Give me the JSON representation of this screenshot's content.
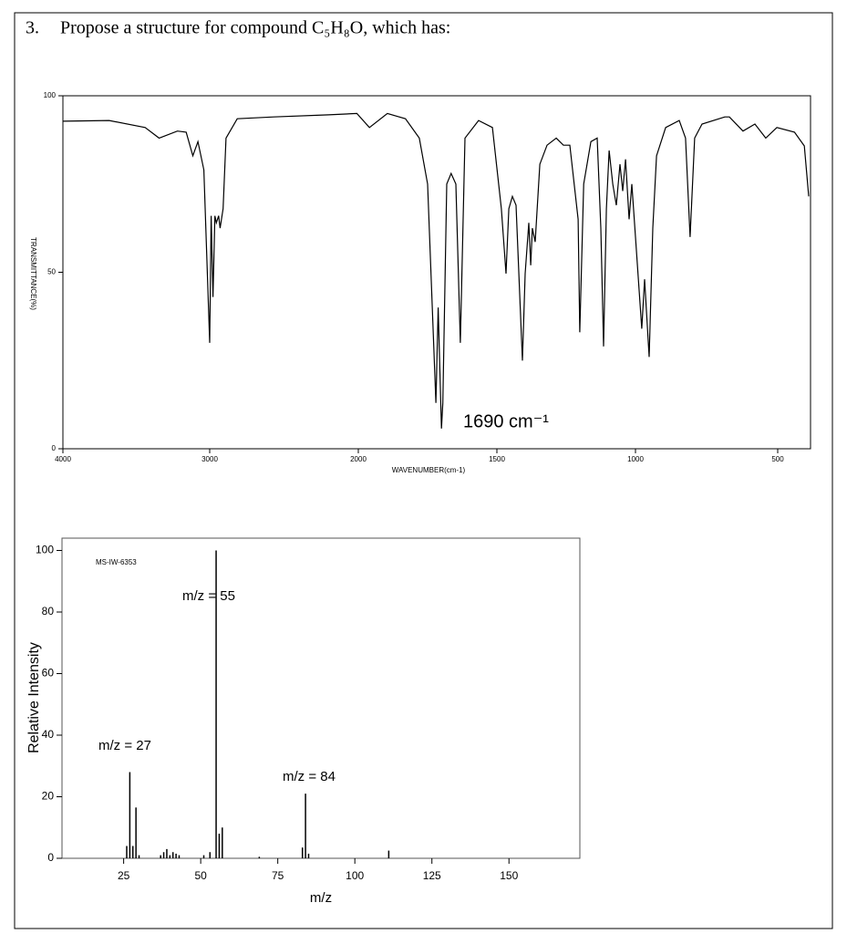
{
  "question": {
    "number": "3.",
    "text": "Propose a structure for compound C₅H₈O, which has:"
  },
  "chart_data": [
    {
      "type": "line",
      "x_label": "WAVENUMBER(cm-1)",
      "y_label": "TRANSMITTANCE(%)",
      "annotation": "1690 cm⁻¹",
      "x": [
        4000,
        3685,
        3440,
        3345,
        3220,
        3160,
        3115,
        3080,
        3040,
        3000,
        2990,
        2978,
        2965,
        2955,
        2940,
        2930,
        2910,
        2890,
        2815,
        2570,
        2200,
        2010,
        1960,
        1895,
        1830,
        1780,
        1750,
        1720,
        1712,
        1700,
        1695,
        1681,
        1665,
        1648,
        1632,
        1615,
        1566,
        1516,
        1484,
        1467,
        1457,
        1444,
        1431,
        1408,
        1398,
        1385,
        1378,
        1372,
        1362,
        1345,
        1319,
        1286,
        1260,
        1237,
        1207,
        1201,
        1187,
        1161,
        1138,
        1125,
        1115,
        1105,
        1095,
        1082,
        1069,
        1056,
        1046,
        1036,
        1023,
        1013,
        1000,
        978,
        968,
        952,
        939,
        926,
        894,
        846,
        824,
        808,
        792,
        766,
        686,
        670,
        622,
        580,
        542,
        503,
        446,
        414,
        400
      ],
      "values": [
        92.8,
        93,
        91,
        88,
        90,
        89.7,
        83,
        87,
        79,
        30,
        66,
        43,
        66,
        64,
        66,
        62.5,
        68,
        88,
        93.5,
        94,
        94.6,
        95,
        91,
        95,
        93.5,
        88,
        75,
        13,
        40,
        5.7,
        13,
        75,
        78,
        75,
        30,
        88,
        93,
        91,
        68,
        49.6,
        68,
        71.5,
        69,
        25,
        49.6,
        64,
        52,
        62.5,
        58.6,
        80.6,
        86,
        88,
        86,
        86,
        65,
        33,
        75,
        87,
        88,
        62.5,
        29,
        68,
        84.5,
        75,
        69,
        80.6,
        73,
        82,
        65,
        75,
        60,
        34,
        48,
        26,
        62.5,
        83,
        91,
        93,
        88,
        60,
        88,
        92,
        94,
        94,
        90,
        92,
        88,
        91,
        89.7,
        85.8,
        71.5
      ],
      "color": "#000000",
      "xlim": [
        4000,
        400
      ],
      "xticks": [
        4000,
        3000,
        2000,
        1500,
        1000,
        500
      ],
      "ylim": [
        0,
        100
      ],
      "yticks": [
        0,
        50,
        100
      ]
    },
    {
      "type": "bar",
      "spectrum_id": "MS-IW-6353",
      "x_label": "m/z",
      "y_label": "Relative Intensity",
      "annotations": [
        "m/z = 27",
        "m/z = 55",
        "m/z = 84"
      ],
      "x": [
        26,
        27,
        28,
        29,
        30,
        37,
        38,
        39,
        40,
        41,
        42,
        43,
        51,
        53,
        55,
        56,
        57,
        69,
        83,
        84,
        85,
        111
      ],
      "values": [
        4,
        28,
        4,
        16.5,
        1,
        1,
        2,
        3,
        1,
        2,
        1.5,
        1,
        1,
        2,
        100,
        8,
        10,
        0.5,
        3.5,
        21,
        1.5,
        2.5
      ],
      "color": "#000000",
      "xlim": [
        5,
        173
      ],
      "xticks": [
        25,
        50,
        75,
        100,
        125,
        150
      ],
      "ylim": [
        0,
        104
      ],
      "yticks": [
        0,
        20,
        40,
        60,
        80,
        100
      ]
    }
  ]
}
